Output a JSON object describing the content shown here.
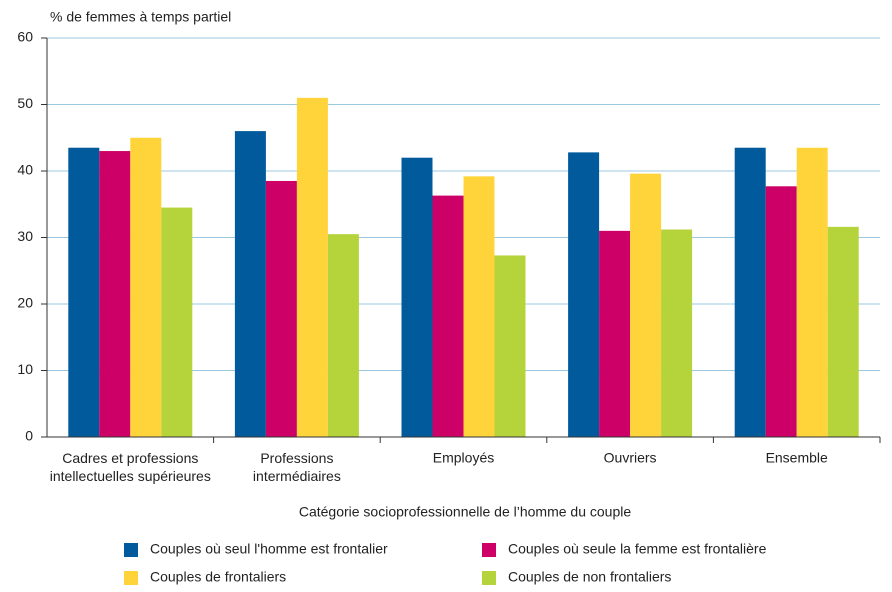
{
  "chart_data": {
    "type": "bar",
    "y_label": "% de femmes à temps partiel",
    "x_label": "Catégorie socioprofessionnelle de l’homme du couple",
    "categories": [
      "Cadres et professions\nintellectuelles supérieures",
      "Professions\nintermédiaires",
      "Employés",
      "Ouvriers",
      "Ensemble"
    ],
    "series": [
      {
        "name": "Couples où seul l'homme est frontalier",
        "color": "#005a9c",
        "values": [
          43.5,
          46,
          42,
          42.8,
          43.5
        ]
      },
      {
        "name": "Couples où seule la femme est frontalière",
        "color": "#cc0066",
        "values": [
          43,
          38.5,
          36.3,
          31,
          37.7
        ]
      },
      {
        "name": "Couples de frontaliers",
        "color": "#ffd43b",
        "values": [
          45,
          51,
          39.2,
          39.6,
          43.5
        ]
      },
      {
        "name": "Couples de non frontaliers",
        "color": "#b5d33a",
        "values": [
          34.5,
          30.5,
          27.3,
          31.2,
          31.6
        ]
      }
    ],
    "ylim": [
      0,
      60
    ],
    "yticks": [
      0,
      10,
      20,
      30,
      40,
      50,
      60
    ],
    "grid": true,
    "legend": "bottom"
  }
}
